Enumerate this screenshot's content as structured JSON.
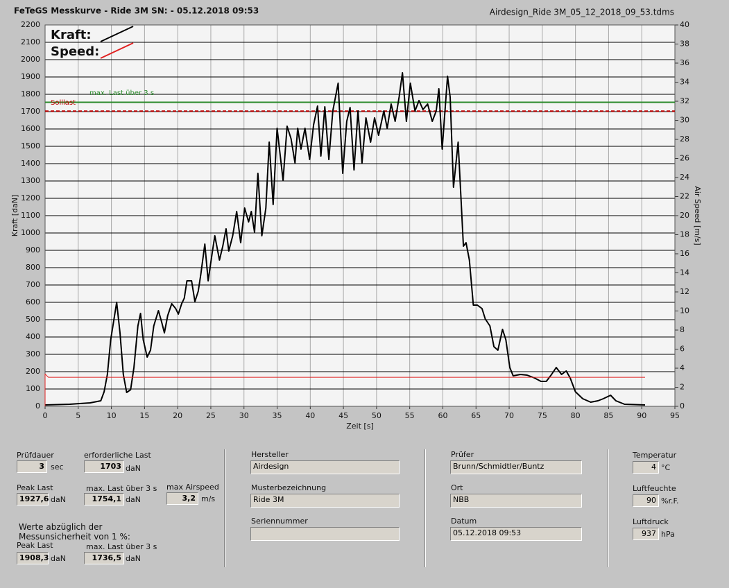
{
  "chart_data": {
    "type": "line",
    "title": "FeTeGS Messkurve - Ride 3M  SN:  - 05.12.2018 09:53",
    "subtitle": "Airdesign_Ride 3M_05_12_2018_09_53.tdms",
    "x_label": "Zeit [s]",
    "y_label": "Kraft [daN]",
    "y2_label": "Air Speed [m/s]",
    "xlim": [
      0,
      95
    ],
    "ylim": [
      0,
      2200
    ],
    "y2lim": [
      0,
      40
    ],
    "xticks": [
      0,
      5,
      10,
      15,
      20,
      25,
      30,
      35,
      40,
      45,
      50,
      55,
      60,
      65,
      70,
      75,
      80,
      85,
      90,
      95
    ],
    "yticks": [
      0,
      100,
      200,
      300,
      400,
      500,
      600,
      700,
      800,
      900,
      1000,
      1100,
      1200,
      1300,
      1400,
      1500,
      1600,
      1700,
      1800,
      1900,
      2000,
      2100,
      2200
    ],
    "y2ticks": [
      0,
      2,
      4,
      6,
      8,
      10,
      12,
      14,
      16,
      18,
      20,
      22,
      24,
      26,
      28,
      30,
      32,
      34,
      36,
      38,
      40
    ],
    "grid": true,
    "legend": "upper left",
    "reference_lines": [
      {
        "label": "max. Last über  3 s",
        "value": 1754.1,
        "color": "#2a8a2a",
        "dashed": false
      },
      {
        "label": "Solllast",
        "value": 1703,
        "color": "#c00000",
        "dashed": true
      }
    ],
    "series": [
      {
        "name": "Kraft:",
        "color": "#000000",
        "x": [
          0,
          3.7,
          6.8,
          8.4,
          8.9,
          9.4,
          9.9,
          10.8,
          11.3,
          11.8,
          12.3,
          12.9,
          13.4,
          14.0,
          14.4,
          14.8,
          15.4,
          15.9,
          16.4,
          17.1,
          17.6,
          18.0,
          18.5,
          19.1,
          19.7,
          20.1,
          20.6,
          21.0,
          21.4,
          22.1,
          22.6,
          23.1,
          23.5,
          24.1,
          24.6,
          25.2,
          25.6,
          26.3,
          26.8,
          27.3,
          27.7,
          28.3,
          28.9,
          29.5,
          30.1,
          30.7,
          31.1,
          31.6,
          32.1,
          32.7,
          33.3,
          33.8,
          34.4,
          35.0,
          35.9,
          36.5,
          37.1,
          37.7,
          38.1,
          38.6,
          39.2,
          39.9,
          40.5,
          41.1,
          41.6,
          42.2,
          42.8,
          43.4,
          44.2,
          44.9,
          45.5,
          46.0,
          46.6,
          47.2,
          47.8,
          48.4,
          49.1,
          49.7,
          50.3,
          51.1,
          51.6,
          52.2,
          52.8,
          53.4,
          53.9,
          54.5,
          55.1,
          55.8,
          56.4,
          57.0,
          57.7,
          58.4,
          59.0,
          59.4,
          59.9,
          60.7,
          61.1,
          61.6,
          62.3,
          62.7,
          63.1,
          63.5,
          64.0,
          64.6,
          65.2,
          65.9,
          66.4,
          67.1,
          67.7,
          68.3,
          69.0,
          69.5,
          70.1,
          70.6,
          71.7,
          72.7,
          73.8,
          74.8,
          75.6,
          76.4,
          77.1,
          77.9,
          78.6,
          79.2,
          80.0,
          81.1,
          82.3,
          83.4,
          84.2,
          85.3,
          86.1,
          87.4,
          90.5
        ],
        "values": [
          8,
          12,
          20,
          32,
          84,
          184,
          384,
          600,
          424,
          184,
          80,
          96,
          224,
          464,
          536,
          384,
          284,
          324,
          464,
          552,
          484,
          424,
          524,
          592,
          564,
          532,
          592,
          624,
          724,
          724,
          604,
          664,
          764,
          936,
          724,
          884,
          984,
          844,
          924,
          1024,
          896,
          984,
          1124,
          944,
          1144,
          1064,
          1124,
          1004,
          1344,
          984,
          1144,
          1524,
          1164,
          1604,
          1304,
          1616,
          1544,
          1404,
          1604,
          1484,
          1604,
          1424,
          1624,
          1732,
          1444,
          1728,
          1424,
          1704,
          1864,
          1344,
          1644,
          1724,
          1364,
          1704,
          1404,
          1664,
          1524,
          1664,
          1564,
          1704,
          1604,
          1744,
          1644,
          1784,
          1924,
          1644,
          1864,
          1704,
          1764,
          1712,
          1744,
          1644,
          1704,
          1832,
          1484,
          1904,
          1784,
          1264,
          1524,
          1224,
          924,
          944,
          844,
          584,
          584,
          564,
          504,
          464,
          344,
          324,
          444,
          384,
          224,
          176,
          184,
          180,
          164,
          144,
          144,
          184,
          224,
          184,
          204,
          164,
          84,
          44,
          24,
          32,
          44,
          64,
          32,
          12,
          8
        ]
      },
      {
        "name": "Speed:",
        "color": "#e02020",
        "axis": "y2",
        "x": [
          0,
          0,
          0.5,
          90.5
        ],
        "values": [
          0,
          3.4,
          3.05,
          3.05
        ]
      }
    ]
  },
  "form": {
    "col1": {
      "pruefdauer": {
        "label": "Prüfdauer",
        "value": "3",
        "unit": "sec"
      },
      "erf_last": {
        "label": "erforderliche Last",
        "value": "1703",
        "unit": "daN"
      },
      "peak": {
        "label": "Peak Last",
        "value": "1927,6",
        "unit": "daN"
      },
      "max3": {
        "label": "max. Last über  3 s",
        "value": "1754,1",
        "unit": "daN"
      },
      "airspeed": {
        "label": "max Airspeed",
        "value": "3,2",
        "unit": "m/s"
      },
      "note": [
        "Werte abzüglich der",
        "Messunsicherheit von 1  %:"
      ],
      "peak2": {
        "label": "Peak Last",
        "value": "1908,3",
        "unit": "daN"
      },
      "max3b": {
        "label": "max. Last über  3 s",
        "value": "1736,5",
        "unit": "daN"
      }
    },
    "col2": [
      {
        "label": "Hersteller",
        "value": "Airdesign"
      },
      {
        "label": "Musterbezeichnung",
        "value": "Ride 3M"
      },
      {
        "label": "Seriennummer"
      }
    ],
    "col3": [
      {
        "label": "Prüfer",
        "value": "Brunn/Schmidtler/Buntz"
      },
      {
        "label": "Ort",
        "value": "NBB"
      },
      {
        "label": "Datum",
        "value": "05.12.2018 09:53"
      }
    ],
    "col4": [
      {
        "label": "Temperatur",
        "value": "4",
        "unit": "°C"
      },
      {
        "label": "Luftfeuchte",
        "value": "90",
        "unit": "%r.F."
      },
      {
        "label": "Luftdruck",
        "value": "937",
        "unit": "hPa"
      }
    ]
  }
}
